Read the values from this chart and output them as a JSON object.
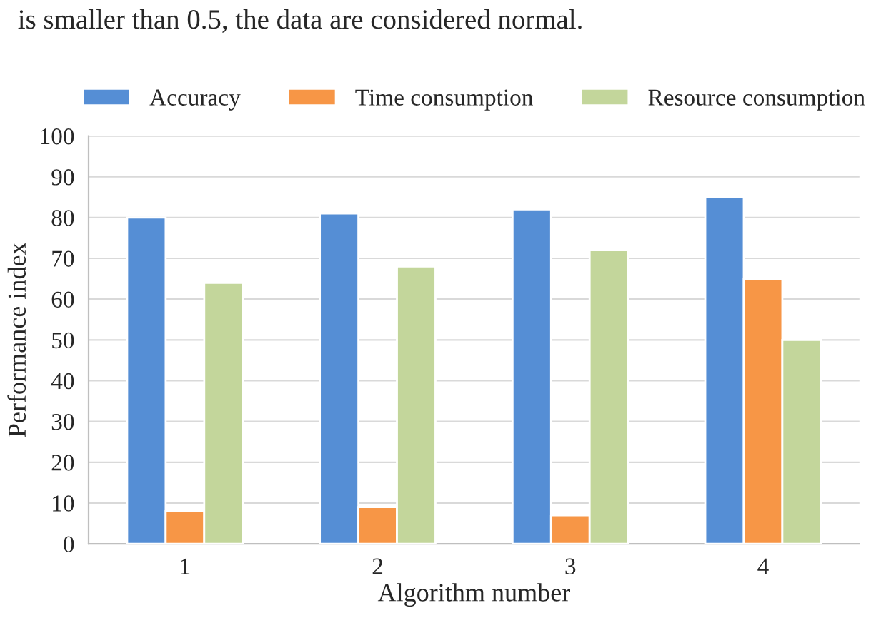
{
  "chart_data": {
    "type": "bar",
    "xlabel": "Algorithm number",
    "ylabel": "Performance index",
    "annotations": [
      "is smaller than 0.5, the data are considered normal."
    ],
    "categories": [
      "1",
      "2",
      "3",
      "4"
    ],
    "series": [
      {
        "name": "Accuracy",
        "color": "#558ed5",
        "values": [
          80,
          81,
          82,
          85
        ]
      },
      {
        "name": "Time consumption",
        "color": "#f79646",
        "values": [
          8,
          9,
          7,
          65
        ]
      },
      {
        "name": "Resource consumption",
        "color": "#c3d69b",
        "values": [
          64,
          68,
          72,
          50
        ]
      }
    ],
    "ylim": [
      0,
      100
    ],
    "yticks": [
      0,
      10,
      20,
      30,
      40,
      50,
      60,
      70,
      80,
      90,
      100
    ],
    "grid": "y",
    "legend": "top"
  }
}
